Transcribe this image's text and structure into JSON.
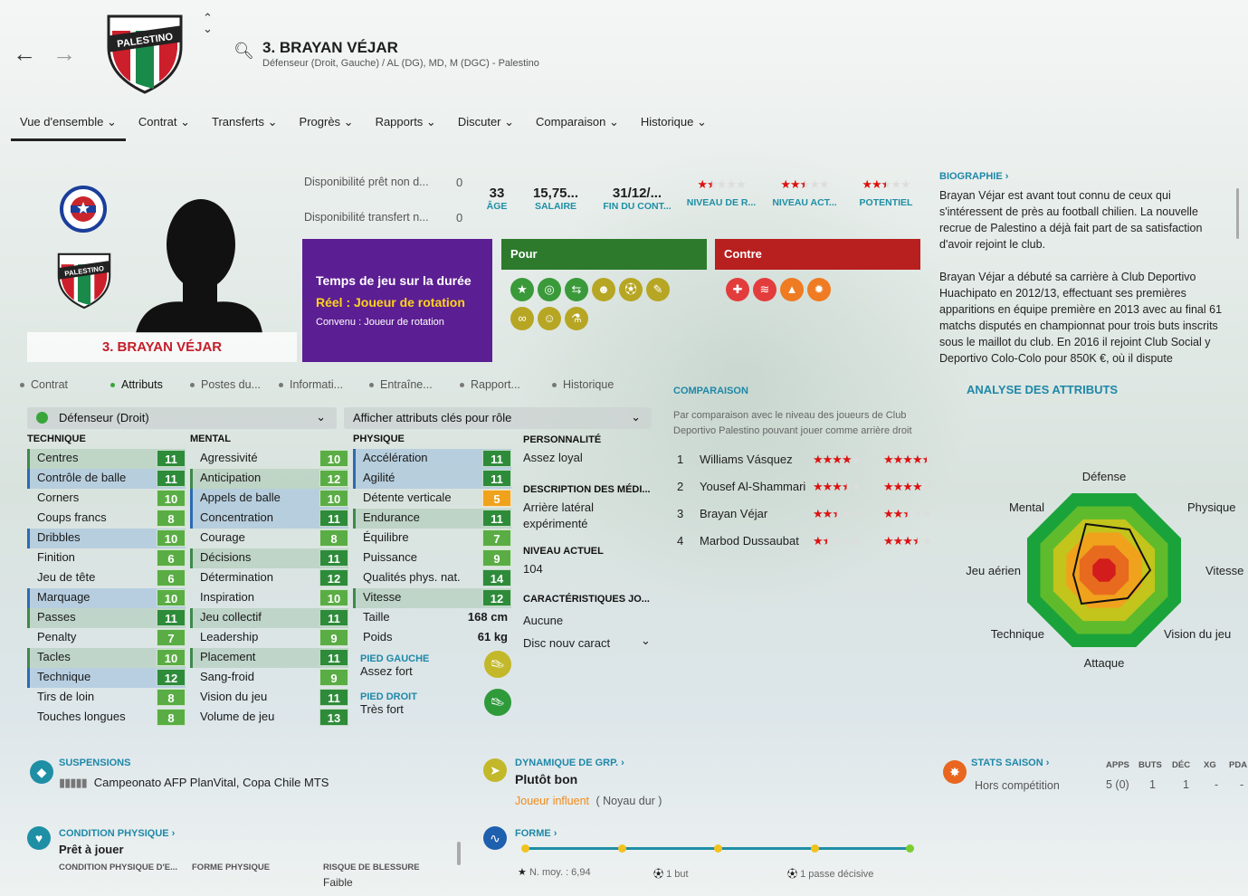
{
  "header": {
    "name": "3. BRAYAN VÉJAR",
    "subtitle": "Défenseur (Droit, Gauche) / AL (DG), MD, M (DGC) - Palestino",
    "club_badge": "PALESTINO"
  },
  "tabs": [
    "Vue d'ensemble ⌄",
    "Contrat ⌄",
    "Transferts ⌄",
    "Progrès ⌄",
    "Rapports ⌄",
    "Discuter ⌄",
    "Comparaison ⌄",
    "Historique ⌄"
  ],
  "player_card": {
    "name": "3. BRAYAN VÉJAR",
    "club_badge": "PALESTINO"
  },
  "availability": [
    {
      "label": "Disponibilité prêt non d...",
      "value": "0"
    },
    {
      "label": "Disponibilité transfert n...",
      "value": "0"
    }
  ],
  "stats": [
    {
      "value": "33",
      "label": "ÂGE"
    },
    {
      "value": "15,75...",
      "label": "SALAIRE"
    },
    {
      "value": "31/12/...",
      "label": "FIN DU CONT..."
    }
  ],
  "ratings": [
    {
      "label": "NIVEAU DE R...",
      "stars": 1.5
    },
    {
      "label": "NIVEAU ACT...",
      "stars": 2.5
    },
    {
      "label": "POTENTIEL",
      "stars": 2.5
    }
  ],
  "playtime": {
    "title": "Temps de jeu sur la durée",
    "real": "Réel : Joueur de rotation",
    "agreed": "Convenu :  Joueur de rotation"
  },
  "pour": {
    "title": "Pour"
  },
  "contre": {
    "title": "Contre"
  },
  "biography": {
    "title": "BIOGRAPHIE ›",
    "text": "Brayan Véjar est avant tout connu de ceux qui s'intéressent de près au football chilien. La nouvelle recrue de Palestino a déjà fait part de sa satisfaction d'avoir rejoint le club.",
    "text2": "Brayan Véjar a débuté sa carrière à Club Deportivo Huachipato en 2012/13, effectuant ses premières apparitions en équipe première en 2013 avec au final 61 matchs disputés en championnat pour trois buts inscrits sous le maillot du club. En 2016 il rejoint Club Social y Deportivo Colo-Colo pour 850K €, où il dispute"
  },
  "subtabs": [
    "Contrat",
    "Attributs",
    "Postes du...",
    "Informati...",
    "Entraîne...",
    "Rapport...",
    "Historique"
  ],
  "role_dropdown": "Défenseur (Droit)",
  "attr_dropdown": "Afficher attributs clés pour rôle",
  "technique": {
    "title": "TECHNIQUE",
    "rows": [
      [
        "Centres",
        "11",
        "hl2",
        "dg"
      ],
      [
        "Contrôle de balle",
        "11",
        "hl",
        "dg"
      ],
      [
        "Corners",
        "10",
        "",
        "lg"
      ],
      [
        "Coups francs",
        "8",
        "",
        "lg"
      ],
      [
        "Dribbles",
        "10",
        "hl",
        "lg"
      ],
      [
        "Finition",
        "6",
        "",
        "lg"
      ],
      [
        "Jeu de tête",
        "6",
        "",
        "lg"
      ],
      [
        "Marquage",
        "10",
        "hl",
        "lg"
      ],
      [
        "Passes",
        "11",
        "hl2",
        "dg"
      ],
      [
        "Penalty",
        "7",
        "",
        "lg"
      ],
      [
        "Tacles",
        "10",
        "hl2",
        "lg"
      ],
      [
        "Technique",
        "12",
        "hl",
        "dg"
      ],
      [
        "Tirs de loin",
        "8",
        "",
        "lg"
      ],
      [
        "Touches longues",
        "8",
        "",
        "lg"
      ]
    ]
  },
  "mental": {
    "title": "MENTAL",
    "rows": [
      [
        "Agressivité",
        "10",
        "",
        "lg"
      ],
      [
        "Anticipation",
        "12",
        "hl2",
        "lg"
      ],
      [
        "Appels de balle",
        "10",
        "hl",
        "lg"
      ],
      [
        "Concentration",
        "11",
        "hl",
        "dg"
      ],
      [
        "Courage",
        "8",
        "",
        "lg"
      ],
      [
        "Décisions",
        "11",
        "hl2",
        "dg"
      ],
      [
        "Détermination",
        "12",
        "",
        "dg"
      ],
      [
        "Inspiration",
        "10",
        "",
        "lg"
      ],
      [
        "Jeu collectif",
        "11",
        "hl2",
        "dg"
      ],
      [
        "Leadership",
        "9",
        "",
        "lg"
      ],
      [
        "Placement",
        "11",
        "hl2",
        "dg"
      ],
      [
        "Sang-froid",
        "9",
        "",
        "lg"
      ],
      [
        "Vision du jeu",
        "11",
        "",
        "dg"
      ],
      [
        "Volume de jeu",
        "13",
        "",
        "dg"
      ]
    ]
  },
  "physique": {
    "title": "PHYSIQUE",
    "rows": [
      [
        "Accélération",
        "11",
        "hl",
        "dg"
      ],
      [
        "Agilité",
        "11",
        "hl",
        "dg"
      ],
      [
        "Détente verticale",
        "5",
        "",
        "o"
      ],
      [
        "Endurance",
        "11",
        "hl2",
        "dg"
      ],
      [
        "Équilibre",
        "7",
        "",
        "lg"
      ],
      [
        "Puissance",
        "9",
        "",
        "lg"
      ],
      [
        "Qualités phys. nat.",
        "14",
        "",
        "dg"
      ],
      [
        "Vitesse",
        "12",
        "hl2",
        "dg"
      ]
    ],
    "height_label": "Taille",
    "height": "168 cm",
    "weight_label": "Poids",
    "weight": "61 kg",
    "left_foot_label": "PIED GAUCHE",
    "left_foot": "Assez fort",
    "right_foot_label": "PIED DROIT",
    "right_foot": "Très fort"
  },
  "personality": {
    "title": "PERSONNALITÉ",
    "value": "Assez loyal",
    "media_title": "DESCRIPTION DES MÉDI...",
    "media": "Arrière latéral expérimenté",
    "level_title": "NIVEAU ACTUEL",
    "level": "104",
    "traits_title": "CARACTÉRISTIQUES JO...",
    "traits": "Aucune",
    "traits_dd": "Disc nouv caract"
  },
  "comparison": {
    "title": "COMPARAISON",
    "desc": "Par comparaison avec le niveau des joueurs de Club Deportivo Palestino pouvant jouer comme arrière droit",
    "rows": [
      {
        "n": "1",
        "name": "Williams Vásquez",
        "a": 4,
        "b": 4.5
      },
      {
        "n": "2",
        "name": "Yousef Al-Shammari",
        "a": 3.5,
        "b": 4
      },
      {
        "n": "3",
        "name": "Brayan Véjar",
        "a": 2.5,
        "b": 2.5
      },
      {
        "n": "4",
        "name": "Marbod Dussaubat",
        "a": 1.5,
        "b": 3.5
      }
    ]
  },
  "radar": {
    "title": "ANALYSE DES ATTRIBUTS",
    "labels": [
      "Défense",
      "Physique",
      "Vitesse",
      "Vision du jeu",
      "Attaque",
      "Technique",
      "Jeu aérien",
      "Mental"
    ]
  },
  "suspensions": {
    "title": "SUSPENSIONS",
    "text": "Campeonato AFP PlanVital, Copa Chile MTS"
  },
  "dynamics": {
    "title": "DYNAMIQUE DE GRP. ›",
    "value": "Plutôt bon",
    "influence": "Joueur influent",
    "group": "( Noyau dur )"
  },
  "season": {
    "title": "STATS SAISON ›",
    "comp": "Hors compétition",
    "headers": [
      "APPS",
      "BUTS",
      "DÉC",
      "XG",
      "PDA"
    ],
    "values": [
      "5 (0)",
      "1",
      "1",
      "-",
      "-"
    ]
  },
  "condition": {
    "title": "CONDITION PHYSIQUE ›",
    "value": "Prêt à jouer",
    "cols": [
      "CONDITION PHYSIQUE D'E...",
      "FORME PHYSIQUE",
      "RISQUE DE BLESSURE"
    ],
    "risk": "Faible"
  },
  "form": {
    "title": "FORME ›",
    "avg": "N. moy. : 6,94",
    "goals": "1 but",
    "assists": "1 passe décisive"
  }
}
